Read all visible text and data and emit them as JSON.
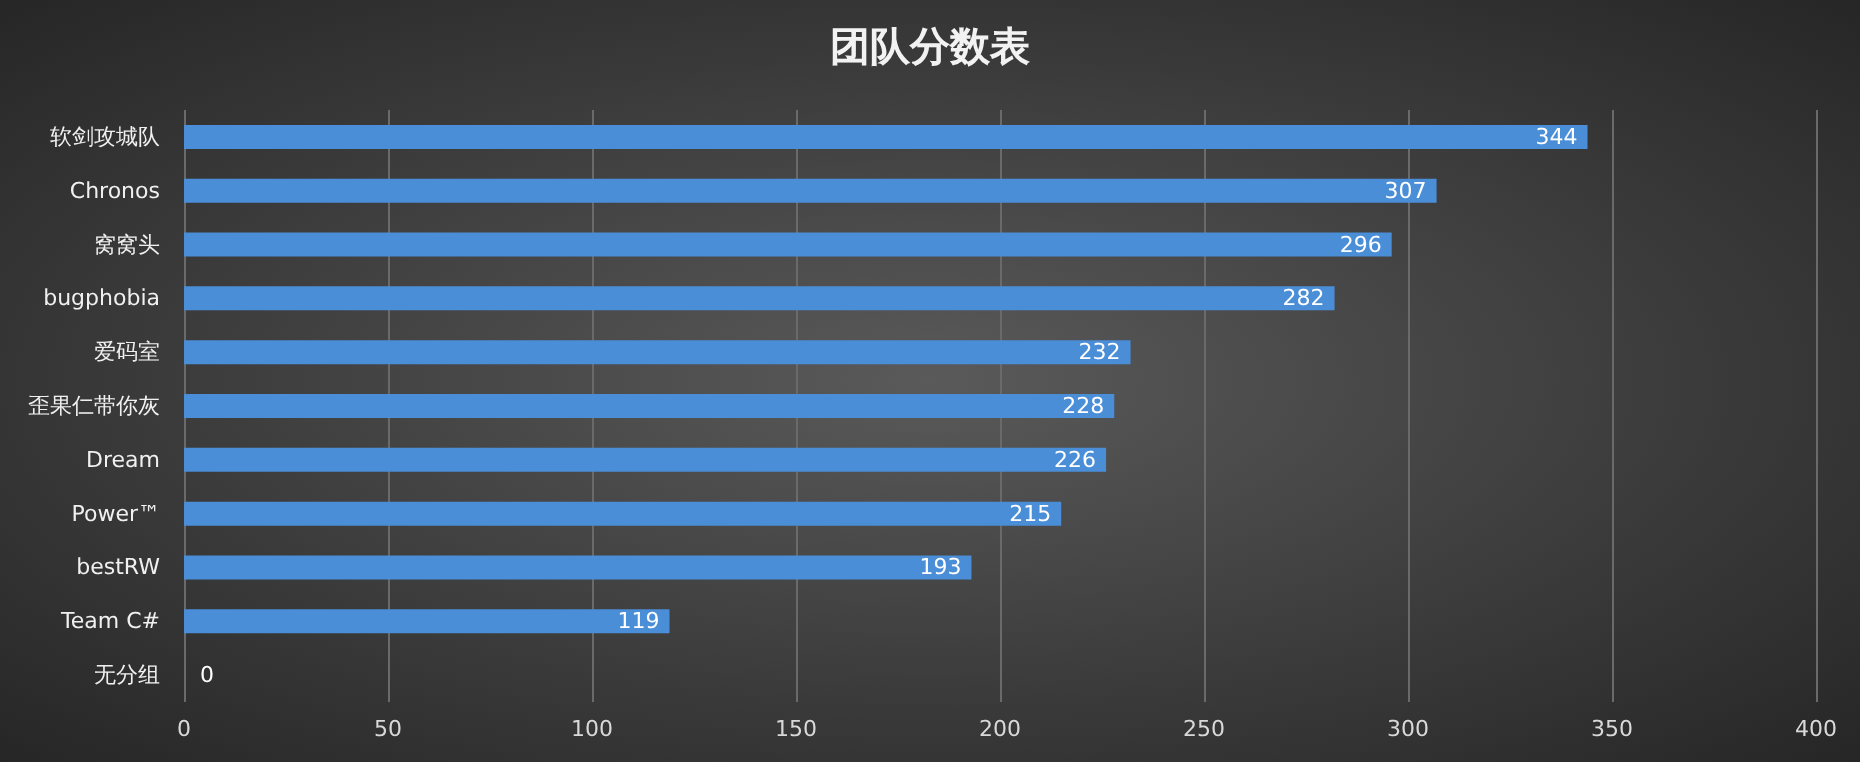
{
  "chart_data": {
    "type": "bar",
    "orientation": "horizontal",
    "title": "团队分数表",
    "categories": [
      "软剑攻城队",
      "Chronos",
      "窝窝头",
      "bugphobia",
      "爱码室",
      "歪果仁带你灰",
      "Dream",
      "Power™",
      "bestRW",
      "Team C#",
      "无分组"
    ],
    "values": [
      344,
      307,
      296,
      282,
      232,
      228,
      226,
      215,
      193,
      119,
      0
    ],
    "color": "#4a8ed8",
    "xlim": [
      0,
      400
    ],
    "xticks": [
      0,
      50,
      100,
      150,
      200,
      250,
      300,
      350,
      400
    ],
    "grid": "x",
    "data_labels": true
  }
}
